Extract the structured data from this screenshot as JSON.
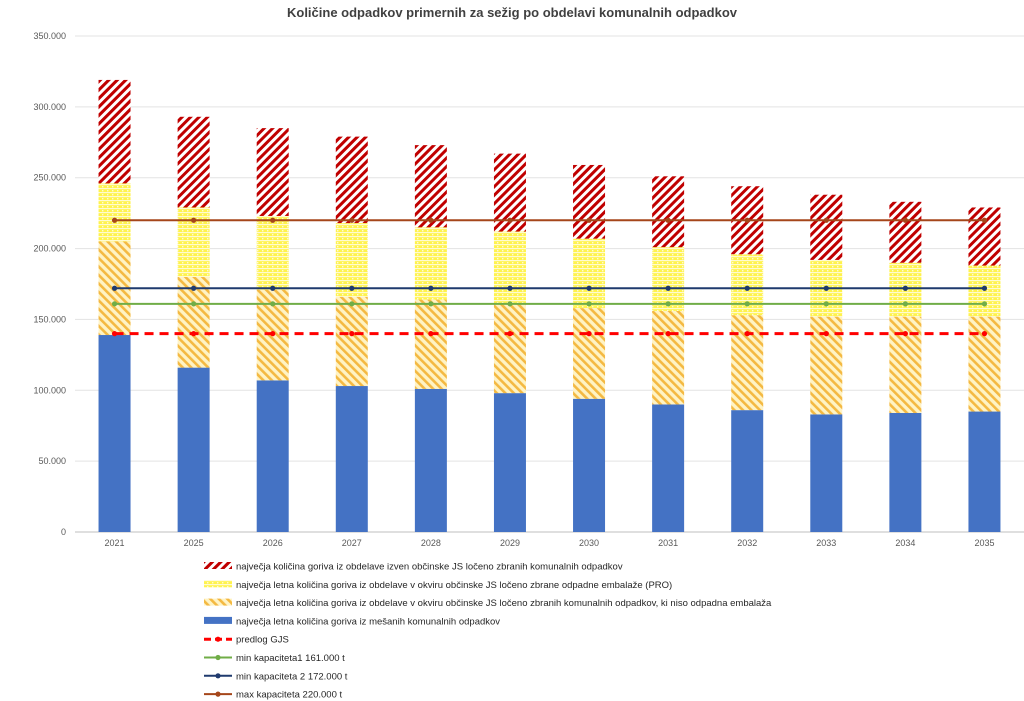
{
  "chart_data": {
    "type": "bar",
    "stacked": true,
    "title": "Količine odpadkov primernih za sežig po  obdelavi komunalnih odpadkov",
    "xlabel": "",
    "ylabel": "",
    "ylim": [
      0,
      350000
    ],
    "yticks": [
      0,
      50000,
      100000,
      150000,
      200000,
      250000,
      300000,
      350000
    ],
    "ytick_labels": [
      "0",
      "50.000",
      "100.000",
      "150.000",
      "200.000",
      "250.000",
      "300.000",
      "350.000"
    ],
    "grid": true,
    "legend_position": "bottom",
    "categories": [
      "2021",
      "2025",
      "2026",
      "2027",
      "2028",
      "2029",
      "2030",
      "2031",
      "2032",
      "2033",
      "2034",
      "2035"
    ],
    "series": [
      {
        "name": "največja letna količina goriva iz mešanih komunalnih odpadkov",
        "kind": "bar",
        "color": "#4472C4",
        "values": [
          139000,
          116000,
          107000,
          103000,
          101000,
          98000,
          94000,
          90000,
          86000,
          83000,
          84000,
          85000
        ]
      },
      {
        "name": "največja letna količina goriva iz obdelave v okviru občinske JS ločeno zbranih komunalnih odpadkov, ki niso odpadna embalaža",
        "kind": "bar",
        "color": "#F4B942",
        "values": [
          66000,
          64000,
          64000,
          63000,
          63000,
          63000,
          64000,
          66000,
          67000,
          69000,
          68000,
          67000
        ]
      },
      {
        "name": "največja letna količina goriva iz obdelave v okviru občinske JS ločeno zbrane odpadne embalaže   (PRO)",
        "kind": "bar",
        "color": "#FFF34D",
        "values": [
          41000,
          49000,
          52000,
          52000,
          51000,
          51000,
          49000,
          45000,
          43000,
          40000,
          38000,
          36000
        ]
      },
      {
        "name": "največja količina goriva iz obdelave izven občinske JS ločeno zbranih komunalnih odpadkov",
        "kind": "bar",
        "color": "#C00000",
        "values": [
          73000,
          64000,
          62000,
          61000,
          58000,
          55000,
          52000,
          50000,
          48000,
          46000,
          43000,
          41000
        ]
      },
      {
        "name": "predlog GJS",
        "kind": "line",
        "color": "#FF0000",
        "dashed": true,
        "values": [
          140000,
          140000,
          140000,
          140000,
          140000,
          140000,
          140000,
          140000,
          140000,
          140000,
          140000,
          140000
        ]
      },
      {
        "name": "min kapaciteta1  161.000 t",
        "kind": "line",
        "color": "#70AD47",
        "values": [
          161000,
          161000,
          161000,
          161000,
          161000,
          161000,
          161000,
          161000,
          161000,
          161000,
          161000,
          161000
        ]
      },
      {
        "name": "min kapaciteta 2 172.000 t",
        "kind": "line",
        "color": "#1F3A6E",
        "values": [
          172000,
          172000,
          172000,
          172000,
          172000,
          172000,
          172000,
          172000,
          172000,
          172000,
          172000,
          172000
        ]
      },
      {
        "name": "max kapaciteta  220.000 t",
        "kind": "line",
        "color": "#A5461A",
        "values": [
          220000,
          220000,
          220000,
          220000,
          220000,
          220000,
          220000,
          220000,
          220000,
          220000,
          220000,
          220000
        ]
      }
    ],
    "legend_order": [
      3,
      2,
      1,
      0,
      4,
      5,
      6,
      7
    ]
  }
}
